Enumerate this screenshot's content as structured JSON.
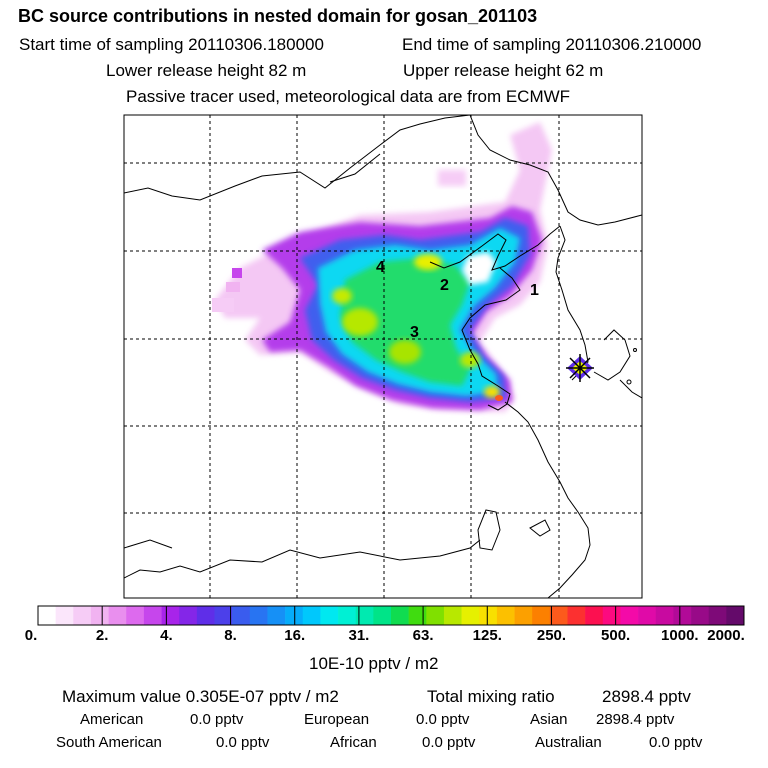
{
  "header": {
    "title": "BC  source contributions in nested domain for gosan_201103",
    "start_label": "Start time of sampling 20110306.180000",
    "end_label": "End time of sampling 20110306.210000",
    "lower_label": "Lower release height   82 m",
    "upper_label": "Upper release height   62 m",
    "tracer_note": "Passive tracer used, meteorological data are from ECMWF"
  },
  "map": {
    "markers": [
      "1",
      "2",
      "3",
      "4"
    ]
  },
  "colorbar": {
    "labels": [
      "0.",
      "2.",
      "4.",
      "8.",
      "16.",
      "31.",
      "63.",
      "125.",
      "250.",
      "500.",
      "1000.",
      "2000."
    ],
    "units": "10E-10 pptv / m2",
    "colors": [
      "#ffffff",
      "#fbe6fb",
      "#f6ccf6",
      "#f1b3f1",
      "#e98fee",
      "#dd6aee",
      "#c646ec",
      "#a824ea",
      "#8426e8",
      "#5f2ee8",
      "#4c40ea",
      "#3a5cee",
      "#2874f2",
      "#1690f6",
      "#06acfa",
      "#00c8fc",
      "#00e8f0",
      "#00f0d4",
      "#00eab0",
      "#00e488",
      "#10dc50",
      "#40dc10",
      "#80e000",
      "#b8e800",
      "#e6f000",
      "#f8e000",
      "#fcc000",
      "#fca000",
      "#fc8000",
      "#fc5a1c",
      "#fc3030",
      "#fc1050",
      "#fc0a80",
      "#f40aa8",
      "#e00aa8",
      "#c80aa0",
      "#b20a98",
      "#980a88",
      "#7e0a78",
      "#640a6a"
    ]
  },
  "footer": {
    "max_label": "Maximum value  0.305E-07 pptv / m2",
    "total_label": "Total mixing ratio",
    "total_value": "2898.4 pptv",
    "american_label": "American",
    "american_value": "0.0 pptv",
    "european_label": "European",
    "european_value": "0.0 pptv",
    "asian_label": "Asian",
    "asian_value": "2898.4 pptv",
    "south_american_label": "South American",
    "south_american_value": "0.0 pptv",
    "african_label": "African",
    "african_value": "0.0 pptv",
    "australian_label": "Australian",
    "australian_value": "0.0 pptv"
  }
}
